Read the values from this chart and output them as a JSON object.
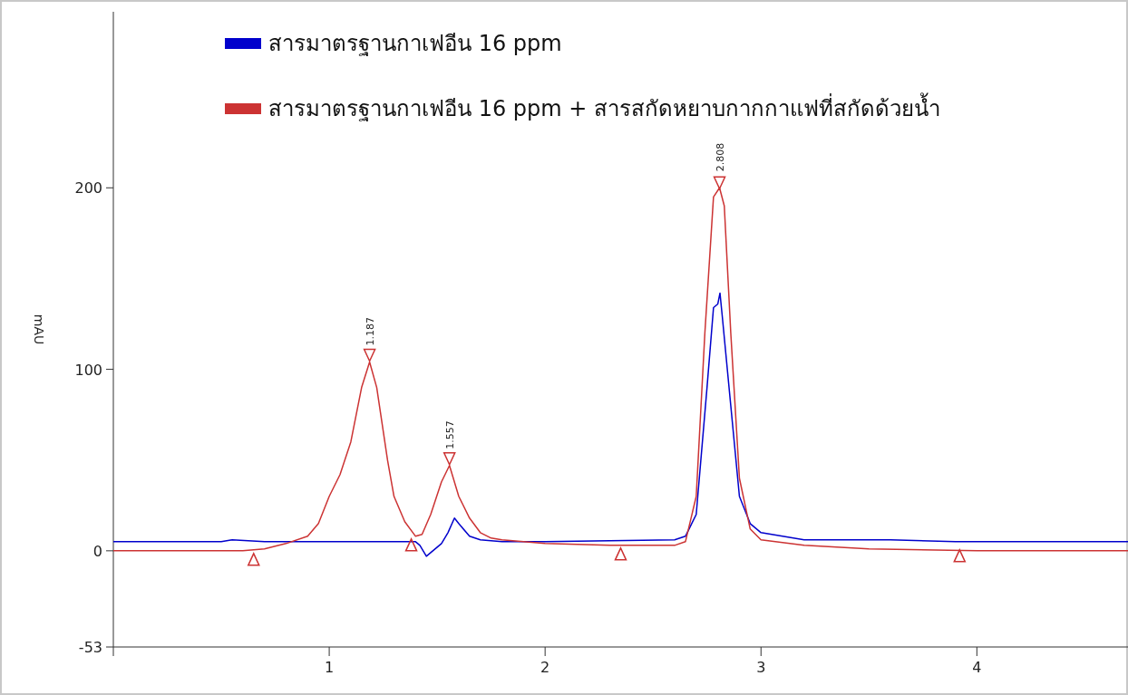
{
  "chart_data": {
    "type": "line",
    "ylabel": "mAU",
    "xlim": [
      0,
      4.7
    ],
    "xticks": [
      {
        "value": 0,
        "label": null
      },
      1,
      2,
      3,
      4
    ],
    "ylim": [
      -53,
      297
    ],
    "yticks": [
      -53,
      0,
      100,
      200
    ],
    "legend": "top left",
    "grid": false,
    "line_style": "solid",
    "annotations": [
      {
        "text": "1.187",
        "x": 1.187,
        "y": 104
      },
      {
        "text": "1.557",
        "x": 1.557,
        "y": 47
      },
      {
        "text": "2.808",
        "x": 2.808,
        "y": 200
      }
    ],
    "series": [
      {
        "name": "สารมาตรฐานกาเฟอีน 16 ppm",
        "color": "#0000cc",
        "x": [
          0,
          0.5,
          0.55,
          0.7,
          1.4,
          1.42,
          1.45,
          1.47,
          1.52,
          1.55,
          1.58,
          1.6,
          1.65,
          1.7,
          1.8,
          2.0,
          2.6,
          2.65,
          2.7,
          2.75,
          2.78,
          2.8,
          2.81,
          2.82,
          2.86,
          2.9,
          2.95,
          3.0,
          3.2,
          3.6,
          3.9,
          4.7
        ],
        "values": [
          5,
          5,
          6,
          5,
          5,
          3,
          -3,
          -1,
          4,
          10,
          18,
          15,
          8,
          6,
          5,
          5,
          6,
          8,
          20,
          90,
          134,
          136,
          142,
          130,
          80,
          30,
          15,
          10,
          6,
          6,
          5,
          5
        ]
      },
      {
        "name": "สารมาตรฐานกาเฟอีน 16 ppm + สารสกัดหยาบกากกาแฟที่สกัดด้วยน้ำ",
        "color": "#cc3333",
        "x": [
          0,
          0.6,
          0.7,
          0.8,
          0.9,
          0.95,
          1.0,
          1.05,
          1.1,
          1.15,
          1.187,
          1.22,
          1.27,
          1.3,
          1.35,
          1.4,
          1.43,
          1.47,
          1.52,
          1.557,
          1.6,
          1.65,
          1.7,
          1.75,
          1.8,
          2.0,
          2.3,
          2.6,
          2.65,
          2.7,
          2.74,
          2.78,
          2.808,
          2.83,
          2.86,
          2.9,
          2.95,
          3.0,
          3.2,
          3.5,
          4.0,
          4.7
        ],
        "values": [
          0,
          0,
          1,
          4,
          8,
          15,
          30,
          42,
          60,
          90,
          104,
          90,
          50,
          30,
          16,
          8,
          9,
          20,
          38,
          47,
          30,
          18,
          10,
          7,
          6,
          4,
          3,
          3,
          5,
          30,
          120,
          195,
          200,
          190,
          120,
          40,
          12,
          6,
          3,
          1,
          0,
          0
        ]
      },
      {
        "type": "scatter",
        "marker": "triangle",
        "color": "#cc3333",
        "x": [
          0.65,
          1.38,
          2.35,
          3.92
        ],
        "values": [
          -5,
          3,
          -2,
          -3
        ]
      },
      {
        "type": "scatter",
        "marker": "triangle",
        "color": "#cc3333",
        "x": [
          1.187,
          1.557,
          2.808
        ],
        "values": [
          108,
          51,
          203
        ]
      }
    ]
  }
}
